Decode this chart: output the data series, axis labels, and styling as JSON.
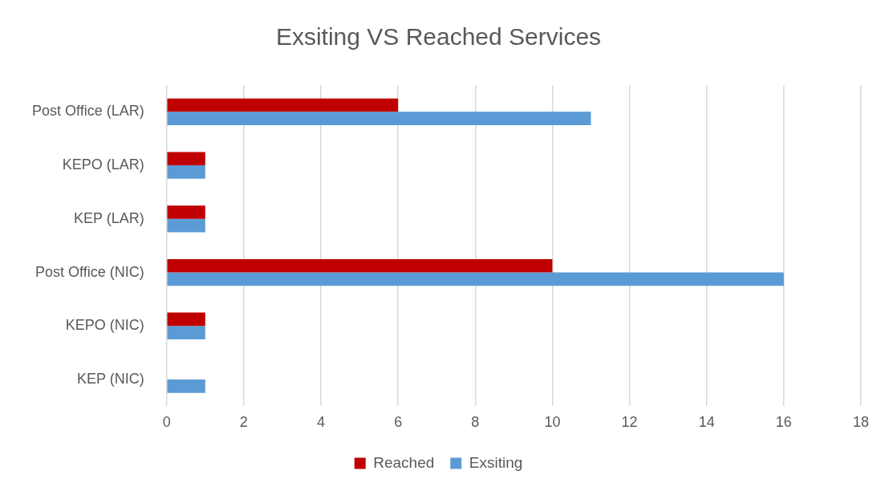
{
  "chart_data": {
    "type": "bar",
    "orientation": "horizontal",
    "title": "Exsiting VS Reached Services",
    "categories": [
      "Post Office (LAR)",
      "KEPO (LAR)",
      "KEP (LAR)",
      "Post Office (NIC)",
      "KEPO (NIC)",
      "KEP (NIC)"
    ],
    "series": [
      {
        "name": "Reached",
        "color": "#c00000",
        "values": [
          6,
          1,
          1,
          10,
          1,
          0
        ]
      },
      {
        "name": "Exsiting",
        "color": "#5b9bd5",
        "values": [
          11,
          1,
          1,
          16,
          1,
          1
        ]
      }
    ],
    "xlim": [
      0,
      18
    ],
    "xticks": [
      0,
      2,
      4,
      6,
      8,
      10,
      12,
      14,
      16,
      18
    ],
    "grid": "x",
    "legend": "bottom"
  }
}
